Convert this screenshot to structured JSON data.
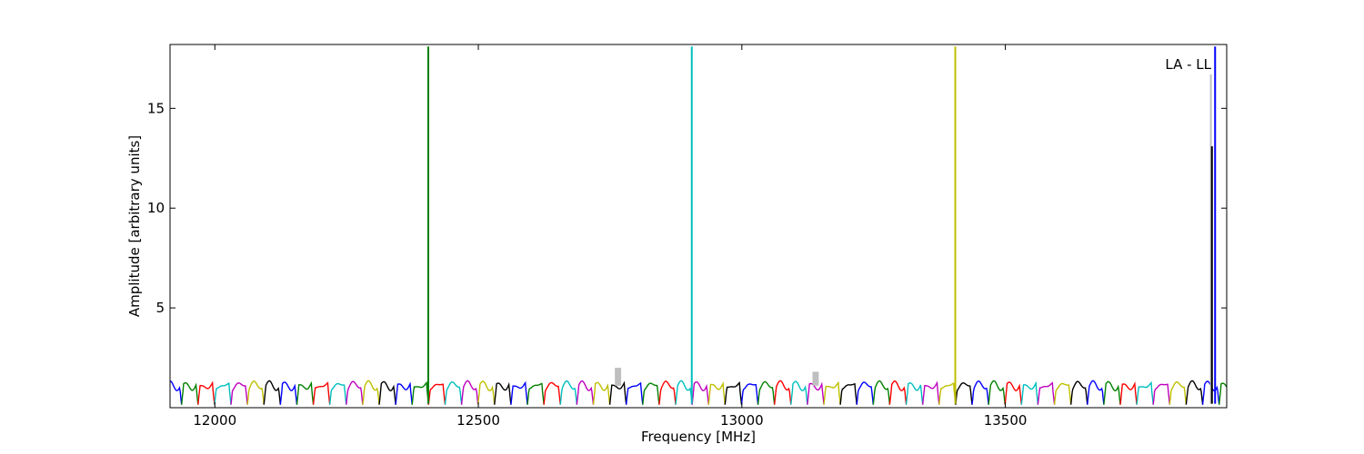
{
  "chart_data": {
    "type": "line",
    "title": "",
    "annotation": "LA - LL",
    "xlabel": "Frequency [MHz]",
    "ylabel": "Amplitude [arbitrary units]",
    "xlim": [
      11915,
      13920
    ],
    "ylim": [
      0,
      18.2
    ],
    "xticks": [
      12000,
      12500,
      13000,
      13500
    ],
    "xtick_labels": [
      "12000",
      "12500",
      "13000",
      "13500"
    ],
    "yticks": [
      5,
      10,
      15
    ],
    "ytick_labels": [
      "5",
      "10",
      "15"
    ],
    "grid": false,
    "legend": "none",
    "palette": [
      "#0000ff",
      "#008000",
      "#ff0000",
      "#00bfbf",
      "#bf00bf",
      "#bfbf00",
      "#000000"
    ],
    "channel_width_mhz": 31.25,
    "baseline_profile": {
      "shape": "bandpass ripple",
      "level": 1.1,
      "dip_min": 0.15
    },
    "spikes": [
      {
        "x": 12405,
        "y": 18.1,
        "color": "#008000"
      },
      {
        "x": 12905,
        "y": 18.1,
        "color": "#00bfbf"
      },
      {
        "x": 13405,
        "y": 18.1,
        "color": "#bfbf00"
      },
      {
        "x": 13890,
        "y": 16.7,
        "color": "#bfbfbf"
      },
      {
        "x": 13892,
        "y": 13.1,
        "color": "#000000"
      },
      {
        "x": 13898,
        "y": 18.1,
        "color": "#0000ff"
      }
    ],
    "grey_bumps": [
      {
        "x": 12765,
        "y": 2.0
      },
      {
        "x": 13140,
        "y": 1.8
      }
    ]
  }
}
